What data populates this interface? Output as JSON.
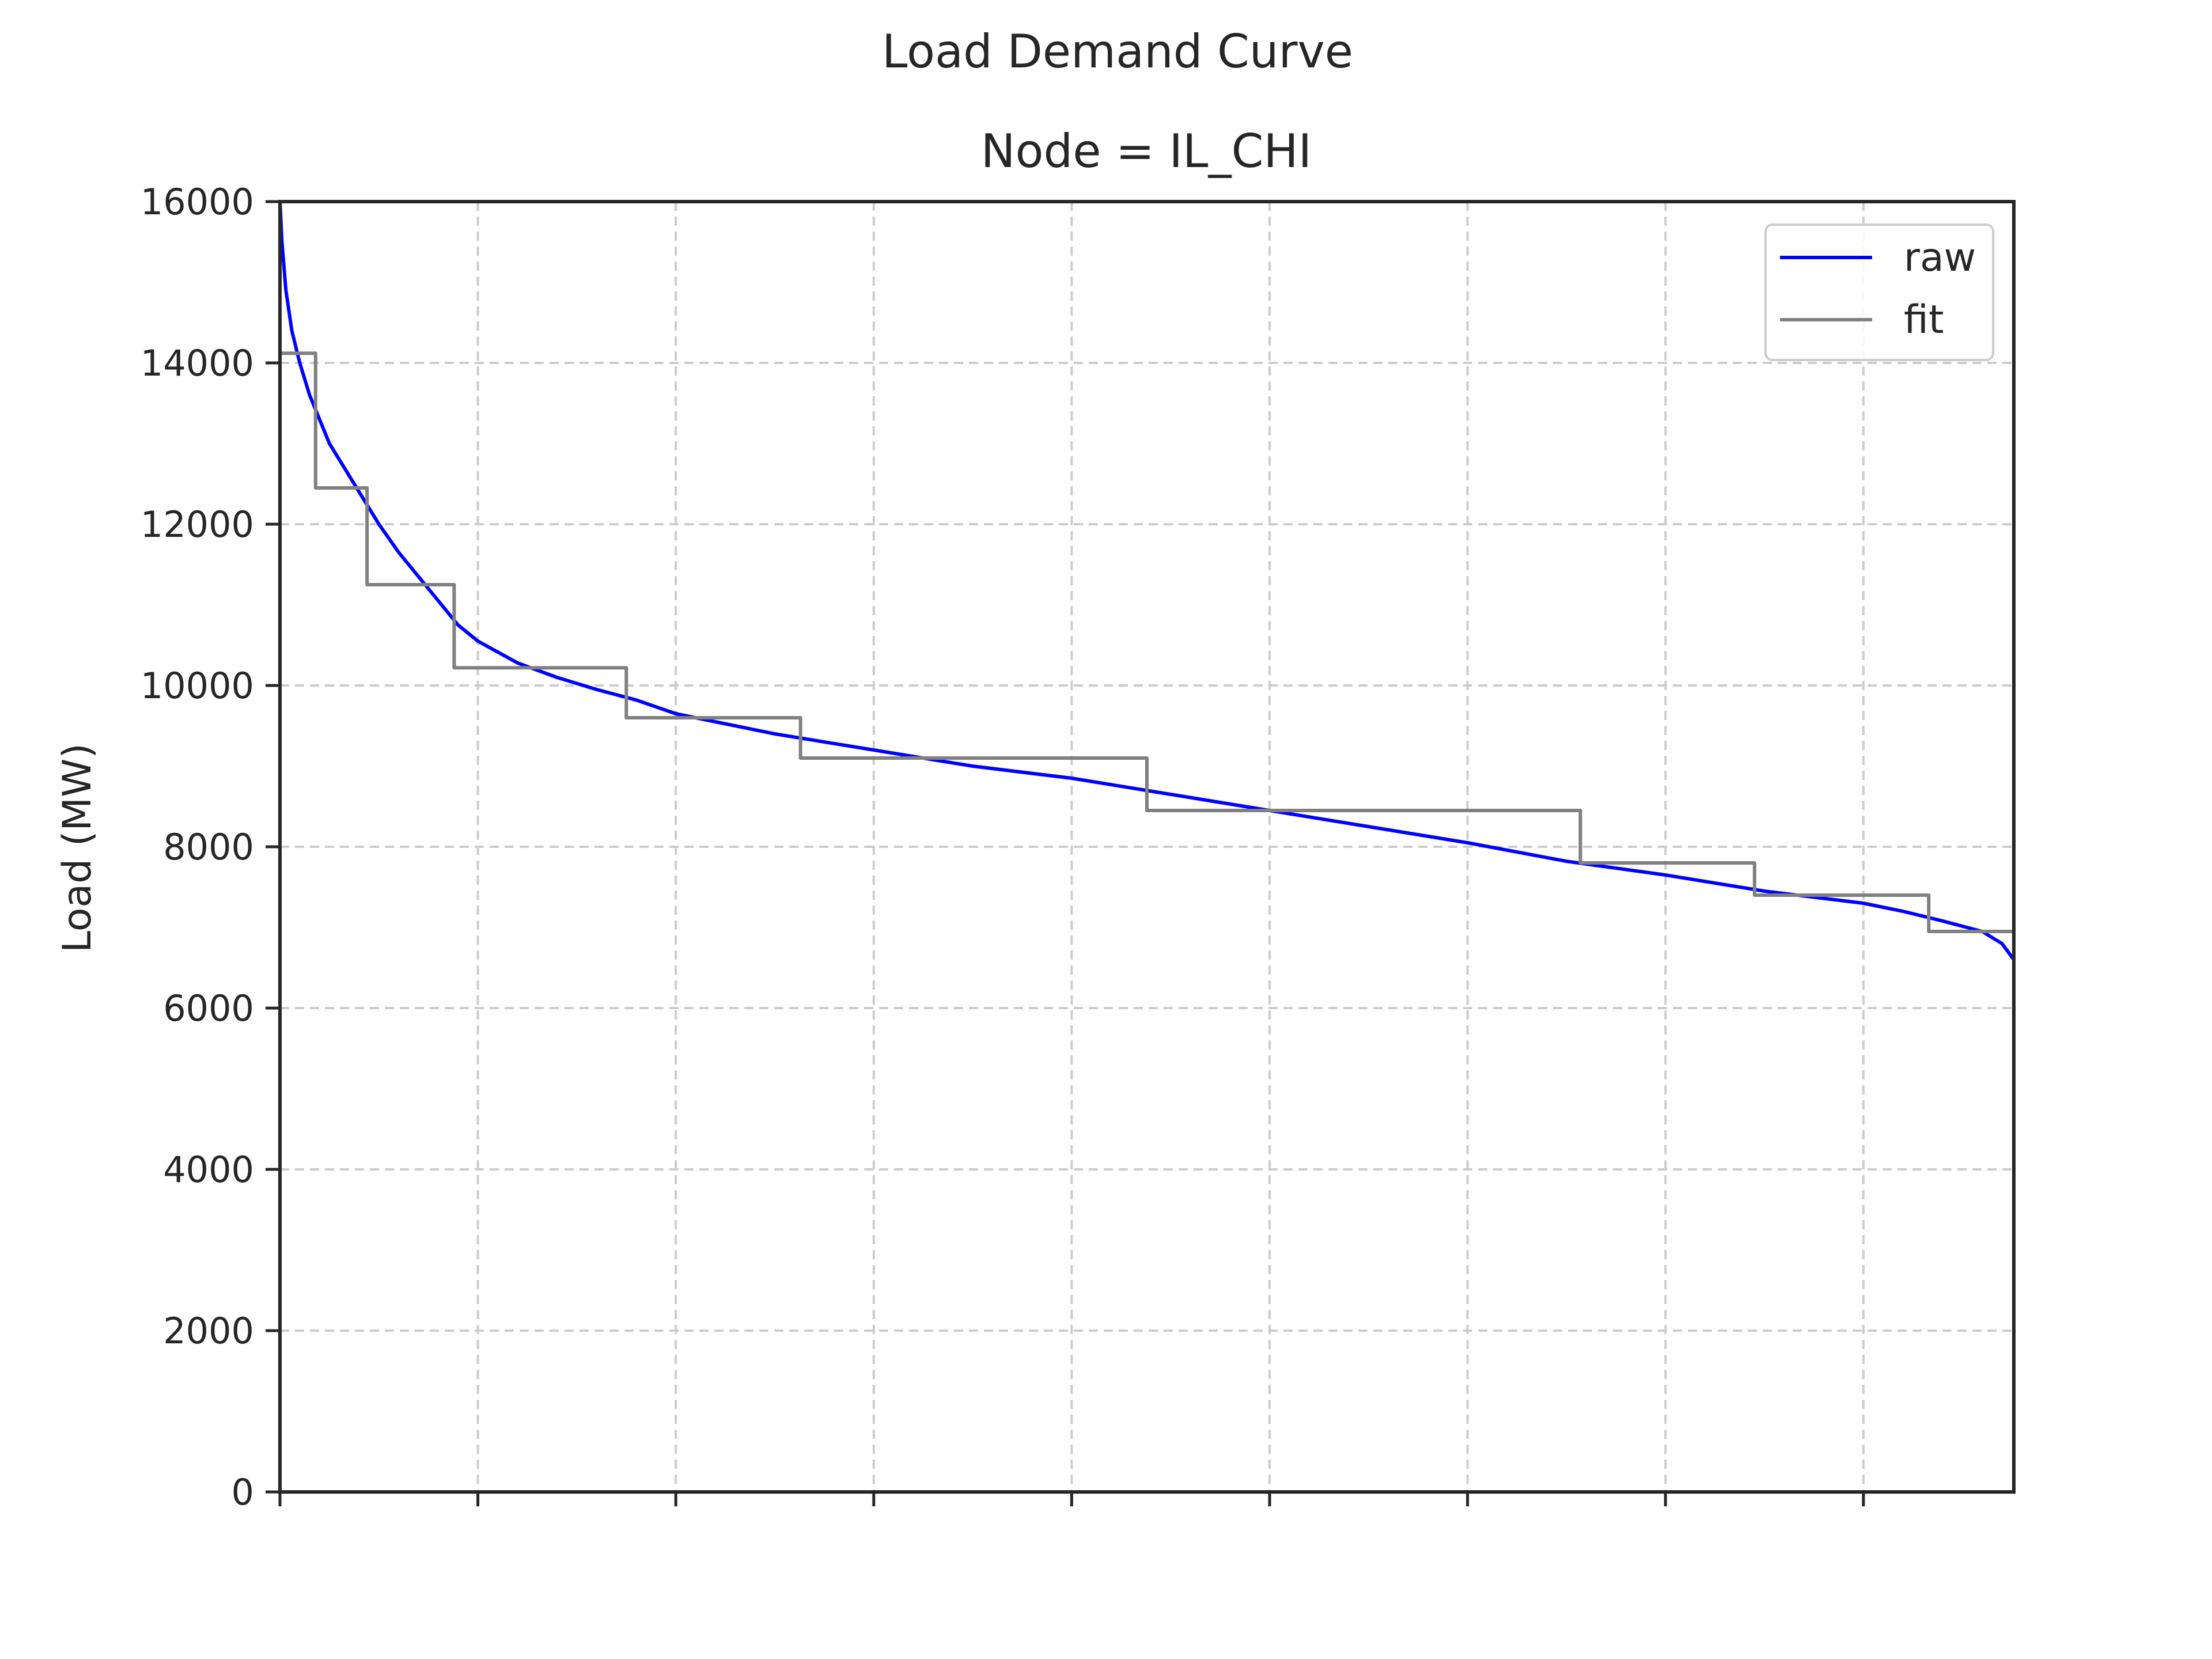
{
  "chart_data": {
    "type": "line",
    "suptitle": "Load Demand Curve",
    "title": "Node = IL_CHI",
    "xlabel": "",
    "ylabel": "Load (MW)",
    "xlim": [
      0,
      8760
    ],
    "ylim": [
      0,
      16000
    ],
    "x_ticks": [
      0,
      1000,
      2000,
      3000,
      4000,
      5000,
      6000,
      7000,
      8000
    ],
    "x_tick_labels": [
      "",
      "",
      "",
      "",
      "",
      "",
      "",
      "",
      ""
    ],
    "y_ticks": [
      0,
      2000,
      4000,
      6000,
      8000,
      10000,
      12000,
      14000,
      16000
    ],
    "y_tick_labels": [
      "0",
      "2000",
      "4000",
      "6000",
      "8000",
      "10000",
      "12000",
      "14000",
      "16000"
    ],
    "grid": true,
    "legend_position": "top-right",
    "series": [
      {
        "name": "raw",
        "style": "line",
        "color": "#0000ff",
        "x": [
          0,
          10,
          30,
          60,
          100,
          150,
          200,
          250,
          300,
          350,
          400,
          450,
          500,
          600,
          700,
          800,
          900,
          1000,
          1200,
          1400,
          1600,
          1800,
          2000,
          2200,
          2500,
          2800,
          3000,
          3500,
          4000,
          4500,
          5000,
          5500,
          6000,
          6500,
          7000,
          7500,
          8000,
          8200,
          8400,
          8600,
          8700,
          8760
        ],
        "y": [
          16050,
          15500,
          14900,
          14400,
          14000,
          13600,
          13300,
          13000,
          12800,
          12600,
          12400,
          12200,
          12000,
          11650,
          11350,
          11050,
          10750,
          10550,
          10280,
          10100,
          9950,
          9820,
          9650,
          9550,
          9400,
          9280,
          9200,
          9000,
          8850,
          8650,
          8450,
          8250,
          8050,
          7820,
          7650,
          7450,
          7300,
          7200,
          7080,
          6950,
          6800,
          6600
        ]
      },
      {
        "name": "fit",
        "style": "step",
        "color": "#808080",
        "edges": [
          0,
          180,
          440,
          880,
          1750,
          2630,
          4380,
          6570,
          7450,
          8330,
          8760
        ],
        "values": [
          14120,
          12450,
          11250,
          10220,
          9600,
          9100,
          8450,
          7800,
          7400,
          6950
        ]
      }
    ]
  }
}
